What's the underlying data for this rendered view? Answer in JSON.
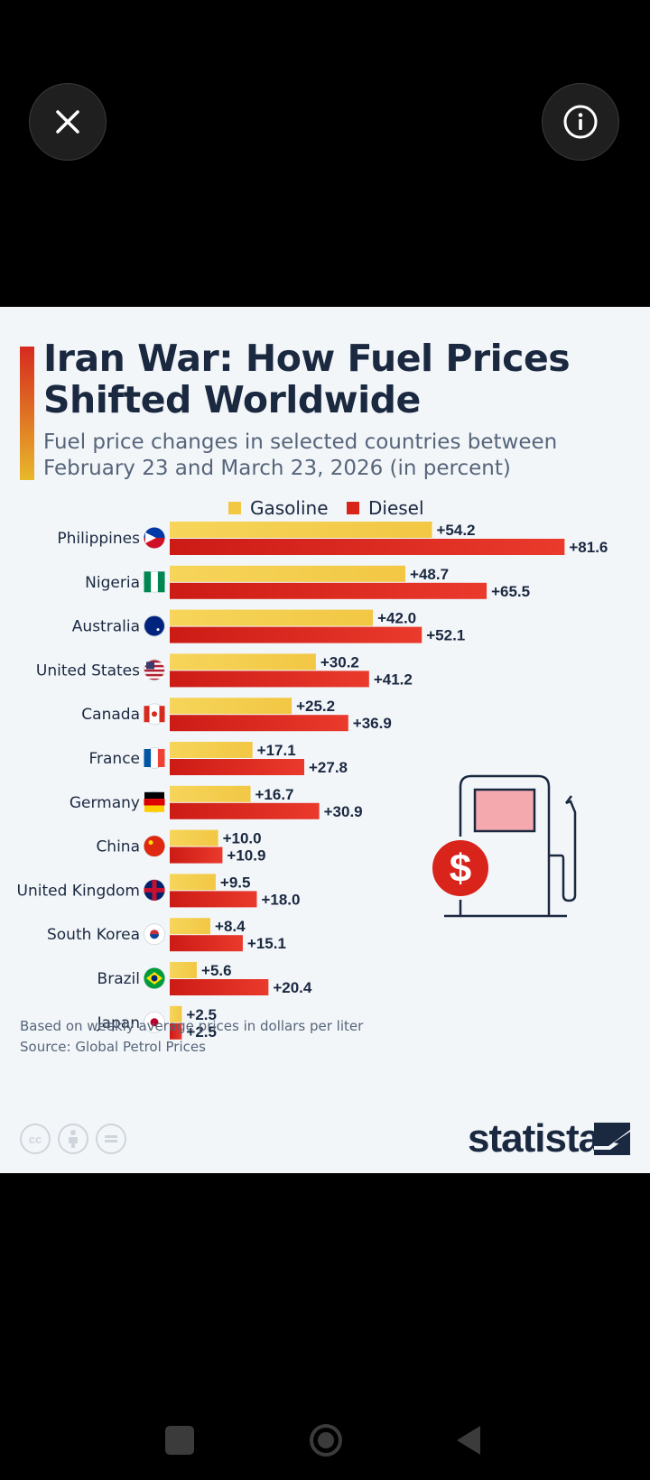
{
  "viewer": {
    "close_icon": "close-icon",
    "info_icon": "info-icon"
  },
  "infographic": {
    "title": "Iran War: How Fuel Prices Shifted Worldwide",
    "subtitle": "Fuel price changes in selected countries between February 23 and March 23, 2026 (in percent)",
    "note": "Based on weekly average prices in dollars per liter",
    "source": "Source: Global Petrol Prices",
    "brand": "statista",
    "license_icons": [
      "cc-icon",
      "by-icon",
      "nd-icon"
    ],
    "license_text": "cc"
  },
  "colors": {
    "gasoline": "#f2c744",
    "diesel": "#d9241b",
    "title": "#1a2840"
  },
  "chart_data": {
    "type": "bar",
    "orientation": "horizontal",
    "title": "Iran War: How Fuel Prices Shifted Worldwide",
    "categories": [
      "Philippines",
      "Nigeria",
      "Australia",
      "United States",
      "Canada",
      "France",
      "Germany",
      "China",
      "United Kingdom",
      "South Korea",
      "Brazil",
      "Japan"
    ],
    "series": [
      {
        "name": "Gasoline",
        "values": [
          54.2,
          48.7,
          42.0,
          30.2,
          25.2,
          17.1,
          16.7,
          10.0,
          9.5,
          8.4,
          5.6,
          2.5
        ],
        "labels": [
          "+54.2",
          "+48.7",
          "+42.0",
          "+30.2",
          "+25.2",
          "+17.1",
          "+16.7",
          "+10.0",
          "+9.5",
          "+8.4",
          "+5.6",
          "+2.5"
        ]
      },
      {
        "name": "Diesel",
        "values": [
          81.6,
          65.5,
          52.1,
          41.2,
          36.9,
          27.8,
          30.9,
          10.9,
          18.0,
          15.1,
          20.4,
          2.5
        ],
        "labels": [
          "+81.6",
          "+65.5",
          "+52.1",
          "+41.2",
          "+36.9",
          "+27.8",
          "+30.9",
          "+10.9",
          "+18.0",
          "+15.1",
          "+20.4",
          "+2.5"
        ]
      }
    ],
    "legend": [
      "Gasoline",
      "Diesel"
    ],
    "legend_position": "top",
    "xlim": [
      0,
      82
    ],
    "xlabel": "",
    "ylabel": "",
    "grid": false
  }
}
